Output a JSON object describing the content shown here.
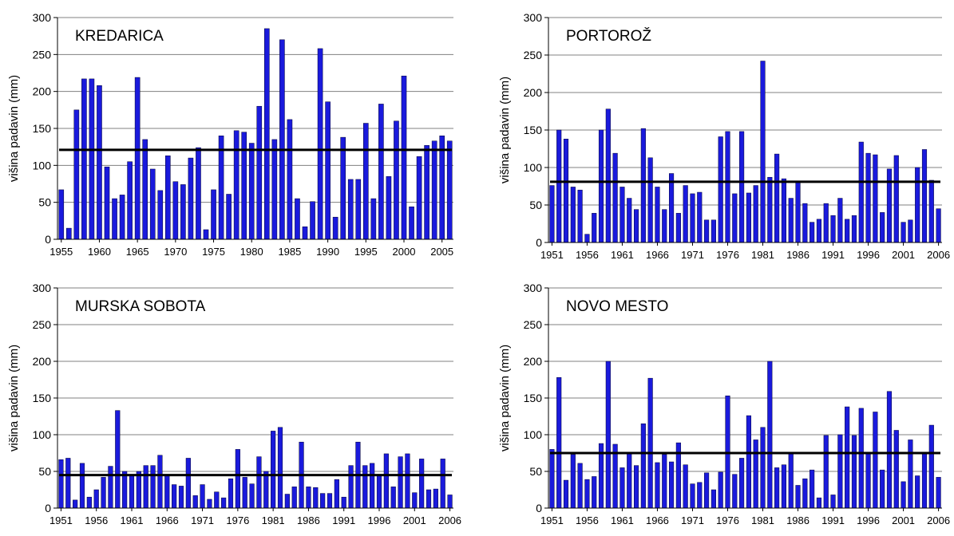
{
  "chart_data": [
    {
      "type": "bar",
      "title": "KREDARICA",
      "ylabel": "višina padavin (mm)",
      "xlabel": "",
      "ylim": [
        0,
        300
      ],
      "yticks": [
        0,
        50,
        100,
        150,
        200,
        250,
        300
      ],
      "x": [
        1955,
        1956,
        1957,
        1958,
        1959,
        1960,
        1961,
        1962,
        1963,
        1964,
        1965,
        1966,
        1967,
        1968,
        1969,
        1970,
        1971,
        1972,
        1973,
        1974,
        1975,
        1976,
        1977,
        1978,
        1979,
        1980,
        1981,
        1982,
        1983,
        1984,
        1985,
        1986,
        1987,
        1988,
        1989,
        1990,
        1991,
        1992,
        1993,
        1994,
        1995,
        1996,
        1997,
        1998,
        1999,
        2000,
        2001,
        2002,
        2003,
        2004,
        2005,
        2006
      ],
      "xticks": [
        1955,
        1960,
        1965,
        1970,
        1975,
        1980,
        1985,
        1990,
        1995,
        2000,
        2005
      ],
      "values": [
        67,
        15,
        175,
        217,
        217,
        208,
        98,
        55,
        60,
        105,
        219,
        135,
        95,
        66,
        113,
        78,
        74,
        110,
        124,
        13,
        67,
        140,
        61,
        147,
        145,
        130,
        180,
        285,
        135,
        270,
        162,
        55,
        17,
        51,
        258,
        186,
        30,
        138,
        81,
        81,
        157,
        55,
        183,
        85,
        160,
        221,
        44,
        112,
        127,
        133,
        140,
        133
      ],
      "mean": 121,
      "bar_color": "#1a1adc",
      "mean_line_color": "#000000",
      "grid": true
    },
    {
      "type": "bar",
      "title": "PORTOROŽ",
      "ylabel": "višina padavin (mm)",
      "xlabel": "",
      "ylim": [
        0,
        300
      ],
      "yticks": [
        0,
        50,
        100,
        150,
        200,
        250,
        300
      ],
      "x": [
        1951,
        1952,
        1953,
        1954,
        1955,
        1956,
        1957,
        1958,
        1959,
        1960,
        1961,
        1962,
        1963,
        1964,
        1965,
        1966,
        1967,
        1968,
        1969,
        1970,
        1971,
        1972,
        1973,
        1974,
        1975,
        1976,
        1977,
        1978,
        1979,
        1980,
        1981,
        1982,
        1983,
        1984,
        1985,
        1986,
        1987,
        1988,
        1989,
        1990,
        1991,
        1992,
        1993,
        1994,
        1995,
        1996,
        1997,
        1998,
        1999,
        2000,
        2001,
        2002,
        2003,
        2004,
        2005,
        2006
      ],
      "xticks": [
        1951,
        1956,
        1961,
        1966,
        1971,
        1976,
        1981,
        1986,
        1991,
        1996,
        2001,
        2006
      ],
      "values": [
        76,
        150,
        138,
        74,
        70,
        11,
        39,
        150,
        178,
        119,
        74,
        59,
        44,
        152,
        113,
        74,
        44,
        92,
        39,
        76,
        65,
        67,
        30,
        30,
        141,
        148,
        65,
        148,
        66,
        76,
        242,
        87,
        118,
        85,
        59,
        80,
        52,
        27,
        31,
        52,
        36,
        59,
        31,
        36,
        134,
        119,
        117,
        40,
        98,
        116,
        27,
        30,
        100,
        124,
        83,
        45
      ],
      "mean": 81,
      "bar_color": "#1a1adc",
      "mean_line_color": "#000000",
      "grid": true
    },
    {
      "type": "bar",
      "title": "MURSKA SOBOTA",
      "ylabel": "višina padavin (mm)",
      "xlabel": "",
      "ylim": [
        0,
        300
      ],
      "yticks": [
        0,
        50,
        100,
        150,
        200,
        250,
        300
      ],
      "x": [
        1951,
        1952,
        1953,
        1954,
        1955,
        1956,
        1957,
        1958,
        1959,
        1960,
        1961,
        1962,
        1963,
        1964,
        1965,
        1966,
        1967,
        1968,
        1969,
        1970,
        1971,
        1972,
        1973,
        1974,
        1975,
        1976,
        1977,
        1978,
        1979,
        1980,
        1981,
        1982,
        1983,
        1984,
        1985,
        1986,
        1987,
        1988,
        1989,
        1990,
        1991,
        1992,
        1993,
        1994,
        1995,
        1996,
        1997,
        1998,
        1999,
        2000,
        2001,
        2002,
        2003,
        2004,
        2005,
        2006
      ],
      "xticks": [
        1951,
        1956,
        1961,
        1966,
        1971,
        1976,
        1981,
        1986,
        1991,
        1996,
        2001,
        2006
      ],
      "values": [
        66,
        68,
        11,
        61,
        15,
        25,
        42,
        57,
        133,
        50,
        44,
        50,
        58,
        58,
        72,
        45,
        32,
        30,
        68,
        17,
        32,
        12,
        22,
        14,
        40,
        80,
        42,
        33,
        70,
        50,
        105,
        110,
        19,
        29,
        90,
        29,
        28,
        20,
        20,
        39,
        15,
        58,
        90,
        58,
        61,
        44,
        74,
        29,
        70,
        74,
        21,
        67,
        25,
        26,
        67,
        18
      ],
      "mean": 45,
      "bar_color": "#1a1adc",
      "mean_line_color": "#000000",
      "grid": true
    },
    {
      "type": "bar",
      "title": "NOVO MESTO",
      "ylabel": "višina padavin (mm)",
      "xlabel": "",
      "ylim": [
        0,
        300
      ],
      "yticks": [
        0,
        50,
        100,
        150,
        200,
        250,
        300
      ],
      "x": [
        1951,
        1952,
        1953,
        1954,
        1955,
        1956,
        1957,
        1958,
        1959,
        1960,
        1961,
        1962,
        1963,
        1964,
        1965,
        1966,
        1967,
        1968,
        1969,
        1970,
        1971,
        1972,
        1973,
        1974,
        1975,
        1976,
        1977,
        1978,
        1979,
        1980,
        1981,
        1982,
        1983,
        1984,
        1985,
        1986,
        1987,
        1988,
        1989,
        1990,
        1991,
        1992,
        1993,
        1994,
        1995,
        1996,
        1997,
        1998,
        1999,
        2000,
        2001,
        2002,
        2003,
        2004,
        2005,
        2006
      ],
      "xticks": [
        1951,
        1956,
        1961,
        1966,
        1971,
        1976,
        1981,
        1986,
        1991,
        1996,
        2001,
        2006
      ],
      "values": [
        80,
        178,
        38,
        73,
        61,
        39,
        43,
        88,
        200,
        87,
        55,
        74,
        58,
        115,
        177,
        62,
        73,
        63,
        89,
        59,
        33,
        35,
        48,
        25,
        49,
        153,
        46,
        68,
        126,
        93,
        110,
        200,
        55,
        59,
        74,
        31,
        40,
        52,
        14,
        99,
        18,
        100,
        138,
        99,
        136,
        74,
        131,
        52,
        159,
        106,
        36,
        93,
        44,
        74,
        113,
        42
      ],
      "mean": 75,
      "bar_color": "#1a1adc",
      "mean_line_color": "#000000",
      "grid": true
    }
  ]
}
